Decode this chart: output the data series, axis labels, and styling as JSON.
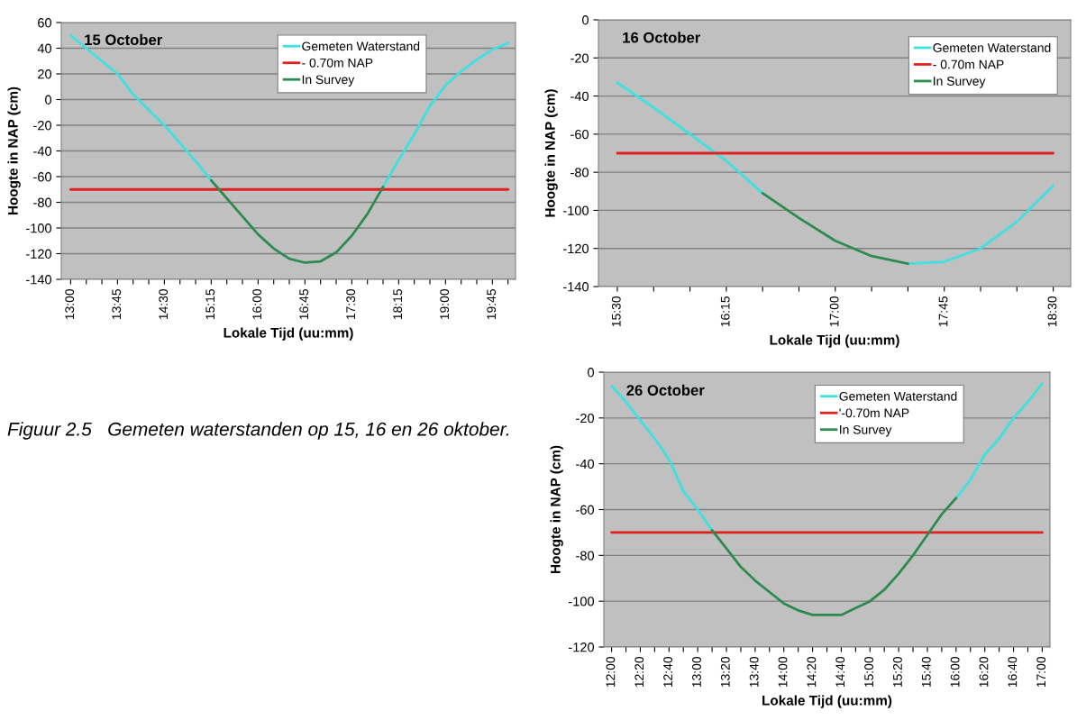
{
  "chart_data": [
    {
      "type": "line",
      "title": "15 October",
      "xlabel": "Lokale Tijd (uu:mm)",
      "ylabel": "Hoogte in NAP (cm)",
      "x": [
        13,
        13.25,
        13.5,
        13.75,
        14,
        14.25,
        14.5,
        14.75,
        15,
        15.25,
        15.5,
        15.75,
        16,
        16.25,
        16.5,
        16.75,
        17,
        17.25,
        17.5,
        17.75,
        18,
        18.25,
        18.5,
        18.75,
        19,
        19.25,
        19.5,
        19.75,
        20
      ],
      "series": [
        {
          "name": "Gemeten Waterstand",
          "color": "#3fe0e0",
          "values": [
            50,
            40,
            30,
            20,
            4,
            -8,
            -20,
            -34,
            -48,
            -63,
            null,
            null,
            null,
            null,
            null,
            null,
            null,
            null,
            null,
            null,
            -68,
            -47,
            -27,
            -5,
            11,
            22,
            31,
            39,
            44
          ]
        },
        {
          "name": "- 0.70m NAP",
          "color": "#e02020",
          "x": [
            13,
            20
          ],
          "values": [
            -70,
            -70
          ]
        },
        {
          "name": "In Survey",
          "color": "#2e8b50",
          "values": [
            null,
            null,
            null,
            null,
            null,
            null,
            null,
            null,
            null,
            -63,
            -77,
            -91,
            -105,
            -116,
            -124,
            -127,
            -126,
            -119,
            -106,
            -89,
            -68,
            null,
            null,
            null,
            null,
            null,
            null,
            null,
            null
          ]
        }
      ],
      "xlim": [
        12.85,
        20.12
      ],
      "xticks": [
        {
          "value": 13,
          "label": "13:00"
        },
        {
          "value": 13.25,
          "label": null
        },
        {
          "value": 13.5,
          "label": null
        },
        {
          "value": 13.75,
          "label": "13:45"
        },
        {
          "value": 14,
          "label": null
        },
        {
          "value": 14.25,
          "label": null
        },
        {
          "value": 14.5,
          "label": "14:30"
        },
        {
          "value": 14.75,
          "label": null
        },
        {
          "value": 15,
          "label": null
        },
        {
          "value": 15.25,
          "label": "15:15"
        },
        {
          "value": 15.5,
          "label": null
        },
        {
          "value": 15.75,
          "label": null
        },
        {
          "value": 16,
          "label": "16:00"
        },
        {
          "value": 16.25,
          "label": null
        },
        {
          "value": 16.5,
          "label": null
        },
        {
          "value": 16.75,
          "label": "16:45"
        },
        {
          "value": 17,
          "label": null
        },
        {
          "value": 17.25,
          "label": null
        },
        {
          "value": 17.5,
          "label": "17:30"
        },
        {
          "value": 17.75,
          "label": null
        },
        {
          "value": 18,
          "label": null
        },
        {
          "value": 18.25,
          "label": "18:15"
        },
        {
          "value": 18.5,
          "label": null
        },
        {
          "value": 18.75,
          "label": null
        },
        {
          "value": 19,
          "label": "19:00"
        },
        {
          "value": 19.25,
          "label": null
        },
        {
          "value": 19.5,
          "label": null
        },
        {
          "value": 19.75,
          "label": "19:45"
        },
        {
          "value": 20,
          "label": null
        }
      ],
      "ylim": [
        -140,
        60
      ],
      "yticks": [
        -140,
        -120,
        -100,
        -80,
        -60,
        -40,
        -20,
        0,
        20,
        40,
        60
      ],
      "grid": "y",
      "legend": "top"
    },
    {
      "type": "line",
      "title": "16 October",
      "xlabel": "Lokale Tijd (uu:mm)",
      "ylabel": "Hoogte in NAP (cm)",
      "x": [
        15.5,
        15.75,
        16,
        16.25,
        16.5,
        16.75,
        17,
        17.25,
        17.5,
        17.75,
        18,
        18.25,
        18.5
      ],
      "series": [
        {
          "name": "Gemeten Waterstand",
          "color": "#3fe0e0",
          "values": [
            -33,
            -46,
            -60,
            -74,
            -91,
            null,
            null,
            null,
            -128,
            -127,
            -120,
            -106,
            -87
          ]
        },
        {
          "name": "- 0.70m NAP",
          "color": "#e02020",
          "x": [
            15.5,
            18.5
          ],
          "values": [
            -70,
            -70
          ]
        },
        {
          "name": "In Survey",
          "color": "#2e8b50",
          "values": [
            null,
            null,
            null,
            null,
            -91,
            -104,
            -116,
            -124,
            -128,
            null,
            null,
            null,
            null
          ]
        }
      ],
      "xlim": [
        15.37,
        18.62
      ],
      "xticks": [
        {
          "value": 15.5,
          "label": "15:30"
        },
        {
          "value": 15.75,
          "label": null
        },
        {
          "value": 16,
          "label": null
        },
        {
          "value": 16.25,
          "label": "16:15"
        },
        {
          "value": 16.5,
          "label": null
        },
        {
          "value": 16.75,
          "label": null
        },
        {
          "value": 17,
          "label": "17:00"
        },
        {
          "value": 17.25,
          "label": null
        },
        {
          "value": 17.5,
          "label": null
        },
        {
          "value": 17.75,
          "label": "17:45"
        },
        {
          "value": 18,
          "label": null
        },
        {
          "value": 18.25,
          "label": null
        },
        {
          "value": 18.5,
          "label": "18:30"
        }
      ],
      "ylim": [
        -140,
        0
      ],
      "yticks": [
        -140,
        -120,
        -100,
        -80,
        -60,
        -40,
        -20,
        0
      ],
      "grid": "y",
      "legend": "top right"
    },
    {
      "type": "line",
      "title": "26 October",
      "xlabel": "Lokale Tijd (uu:mm)",
      "ylabel": "Hoogte in NAP (cm)",
      "annotations": [
        "Figuur 2.5   Gemeten waterstanden op 15, 16 en 26 oktober."
      ],
      "x": [
        12,
        12.1667,
        12.3333,
        12.5,
        12.6667,
        12.8333,
        13,
        13.1667,
        13.3333,
        13.5,
        13.6667,
        13.8333,
        14,
        14.1667,
        14.3333,
        14.5,
        14.6667,
        14.8333,
        15,
        15.1667,
        15.3333,
        15.5,
        15.6667,
        15.8333,
        16,
        16.1667,
        16.3333,
        16.5,
        16.6667,
        16.8333,
        17
      ],
      "series": [
        {
          "name": "Gemeten Waterstand",
          "color": "#3fe0e0",
          "values": [
            -6,
            -13,
            -21,
            -29,
            -38,
            -52,
            -60,
            -69,
            null,
            null,
            null,
            null,
            null,
            null,
            null,
            null,
            null,
            null,
            null,
            null,
            null,
            null,
            null,
            null,
            -55,
            -47,
            -36,
            -29,
            -20,
            -13,
            -5
          ]
        },
        {
          "name": "'-0.70m NAP",
          "color": "#e02020",
          "x": [
            12,
            17
          ],
          "values": [
            -70,
            -70
          ]
        },
        {
          "name": "In Survey",
          "color": "#2e8b50",
          "values": [
            null,
            null,
            null,
            null,
            null,
            null,
            null,
            -69,
            -77,
            -85,
            -91,
            -96,
            -101,
            -104,
            -106,
            -106,
            -106,
            -103,
            -100,
            -95,
            -88,
            -80,
            -71,
            -62,
            -55,
            null,
            null,
            null,
            null,
            null,
            null
          ]
        }
      ],
      "xlim": [
        11.91,
        17.09
      ],
      "xticks": [
        {
          "value": 12,
          "label": "12:00"
        },
        {
          "value": 12.1667,
          "label": null
        },
        {
          "value": 12.3333,
          "label": "12:20"
        },
        {
          "value": 12.5,
          "label": null
        },
        {
          "value": 12.6667,
          "label": "12:40"
        },
        {
          "value": 12.8333,
          "label": null
        },
        {
          "value": 13,
          "label": "13:00"
        },
        {
          "value": 13.1667,
          "label": null
        },
        {
          "value": 13.3333,
          "label": "13:20"
        },
        {
          "value": 13.5,
          "label": null
        },
        {
          "value": 13.6667,
          "label": "13:40"
        },
        {
          "value": 13.8333,
          "label": null
        },
        {
          "value": 14,
          "label": "14:00"
        },
        {
          "value": 14.1667,
          "label": null
        },
        {
          "value": 14.3333,
          "label": "14:20"
        },
        {
          "value": 14.5,
          "label": null
        },
        {
          "value": 14.6667,
          "label": "14:40"
        },
        {
          "value": 14.8333,
          "label": null
        },
        {
          "value": 15,
          "label": "15:00"
        },
        {
          "value": 15.1667,
          "label": null
        },
        {
          "value": 15.3333,
          "label": "15:20"
        },
        {
          "value": 15.5,
          "label": null
        },
        {
          "value": 15.6667,
          "label": "15:40"
        },
        {
          "value": 15.8333,
          "label": null
        },
        {
          "value": 16,
          "label": "16:00"
        },
        {
          "value": 16.1667,
          "label": null
        },
        {
          "value": 16.3333,
          "label": "16:20"
        },
        {
          "value": 16.5,
          "label": null
        },
        {
          "value": 16.6667,
          "label": "16:40"
        },
        {
          "value": 16.8333,
          "label": null
        },
        {
          "value": 17,
          "label": "17:00"
        }
      ],
      "ylim": [
        -120,
        0
      ],
      "yticks": [
        -120,
        -100,
        -80,
        -60,
        -40,
        -20,
        0
      ],
      "grid": "y",
      "legend": "top"
    }
  ]
}
